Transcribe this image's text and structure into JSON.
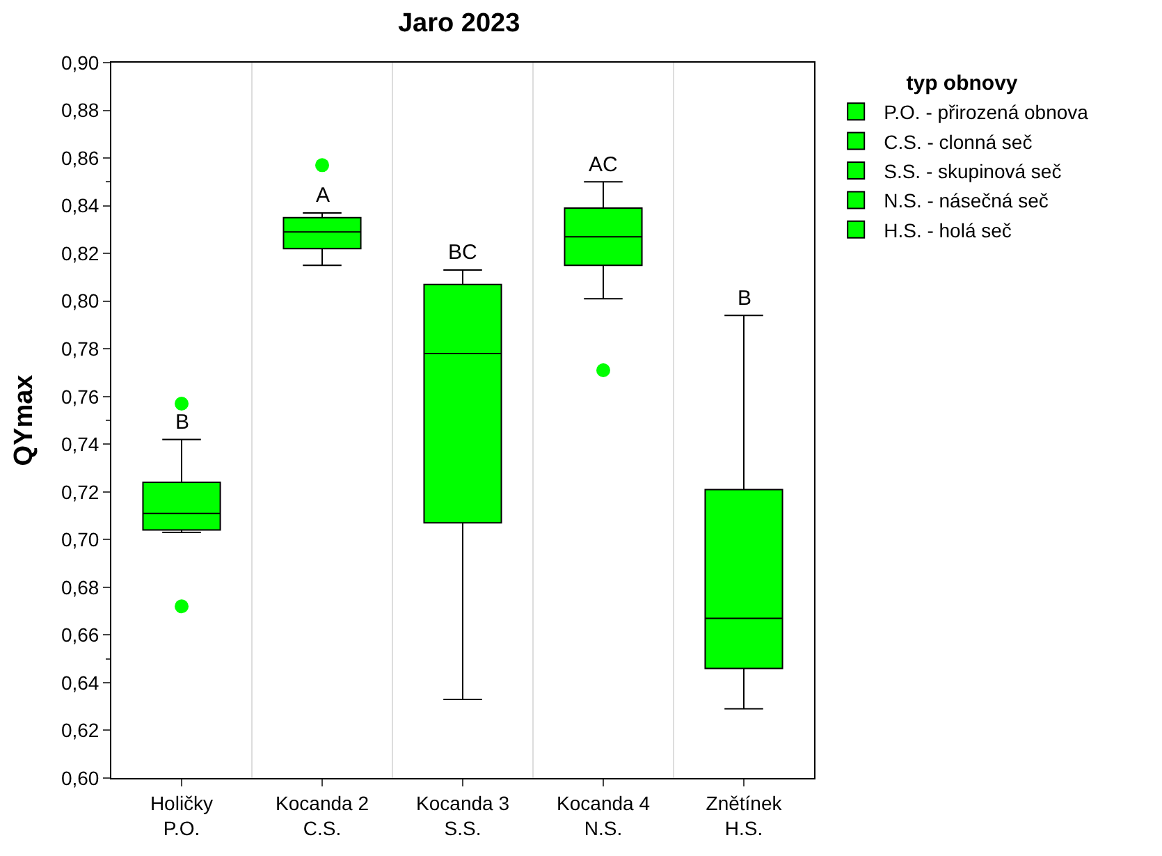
{
  "chart_data": {
    "type": "box",
    "title": "Jaro 2023",
    "ylabel": "QYmax",
    "legend_title": "typ obnovy",
    "legend": "top right",
    "grid": "x",
    "categories": [
      "Holičky\nP.O.",
      "Kocanda 2\nC.S.",
      "Kocanda 3\nS.S.",
      "Kocanda 4\nN.S.",
      "Znětínek\nH.S."
    ],
    "ylim": [
      0.6,
      0.9
    ],
    "yticks": [
      {
        "value": 0.6,
        "label": "0,60"
      },
      {
        "value": 0.62,
        "label": "0,62"
      },
      {
        "value": 0.64,
        "label": "0,64"
      },
      {
        "value": 0.66,
        "label": "0,66"
      },
      {
        "value": 0.68,
        "label": "0,68"
      },
      {
        "value": 0.7,
        "label": "0,70"
      },
      {
        "value": 0.72,
        "label": "0,72"
      },
      {
        "value": 0.74,
        "label": "0,74"
      },
      {
        "value": 0.76,
        "label": "0,76"
      },
      {
        "value": 0.78,
        "label": "0,78"
      },
      {
        "value": 0.8,
        "label": "0,80"
      },
      {
        "value": 0.82,
        "label": "0,82"
      },
      {
        "value": 0.84,
        "label": "0,84"
      },
      {
        "value": 0.86,
        "label": "0,86"
      },
      {
        "value": 0.88,
        "label": "0,88"
      },
      {
        "value": 0.9,
        "label": "0,90"
      }
    ],
    "series": [
      {
        "name": "P.O. - přirozená obnova",
        "color": "#00ff00",
        "boxes": [
          {
            "low": 0.703,
            "q1": 0.704,
            "median": 0.711,
            "q3": 0.724,
            "high": 0.742,
            "outliers": [
              0.757,
              0.672
            ]
          },
          null,
          null,
          null,
          null
        ]
      },
      {
        "name": "C.S. - clonná seč",
        "color": "#00ff00",
        "boxes": [
          null,
          {
            "low": 0.815,
            "q1": 0.822,
            "median": 0.829,
            "q3": 0.835,
            "high": 0.837,
            "outliers": [
              0.857
            ]
          },
          null,
          null,
          null
        ]
      },
      {
        "name": "S.S. - skupinová seč",
        "color": "#00ff00",
        "boxes": [
          null,
          null,
          {
            "low": 0.633,
            "q1": 0.707,
            "median": 0.778,
            "q3": 0.807,
            "high": 0.813
          },
          null,
          null
        ]
      },
      {
        "name": "N.S. - násečná seč",
        "color": "#00ff00",
        "boxes": [
          null,
          null,
          null,
          {
            "low": 0.801,
            "q1": 0.815,
            "median": 0.827,
            "q3": 0.839,
            "high": 0.85,
            "outliers": [
              0.771
            ]
          },
          null
        ]
      },
      {
        "name": "H.S. - holá seč",
        "color": "#00ff00",
        "boxes": [
          null,
          null,
          null,
          null,
          {
            "low": 0.629,
            "q1": 0.646,
            "median": 0.667,
            "q3": 0.721,
            "high": 0.794
          }
        ]
      }
    ],
    "annotations": [
      {
        "text": "B",
        "x": "Holičky\nP.O.",
        "y": 0.742
      },
      {
        "text": "A",
        "x": "Kocanda 2\nC.S.",
        "y": 0.837
      },
      {
        "text": "BC",
        "x": "Kocanda 3\nS.S.",
        "y": 0.813
      },
      {
        "text": "AC",
        "x": "Kocanda 4\nN.S.",
        "y": 0.85
      },
      {
        "text": "B",
        "x": "Znětínek\nH.S.",
        "y": 0.794
      }
    ]
  }
}
